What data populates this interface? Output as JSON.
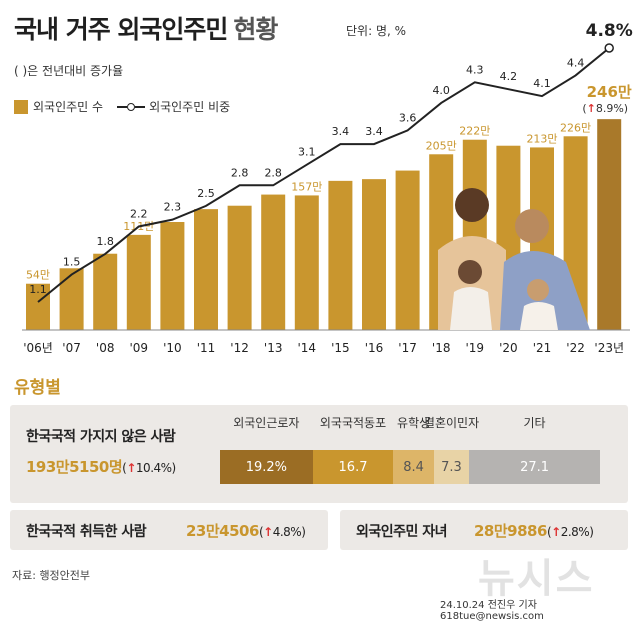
{
  "header": {
    "title": "국내 거주 외국인주민",
    "subtitle": "현황",
    "unit": "단위: 명, %",
    "note": "( )은 전년대비 증가율"
  },
  "legend": {
    "bars": "외국인주민 수",
    "line": "외국인주민 비중"
  },
  "colors": {
    "bar": "#c9962e",
    "bar_last": "#a9792a",
    "line": "#222222",
    "bar_label": "#c9962e",
    "up_arrow": "#dd3333"
  },
  "chart_data": {
    "type": "bar",
    "categories": [
      "'06년",
      "'07",
      "'08",
      "'09",
      "'10",
      "'11",
      "'12",
      "'13",
      "'14",
      "'15",
      "'16",
      "'17",
      "'18",
      "'19",
      "'20",
      "'21",
      "'22",
      "'23년"
    ],
    "series": [
      {
        "name": "외국인주민 수",
        "type": "bar",
        "values": [
          54,
          72,
          89,
          111,
          126,
          141,
          145,
          158,
          157,
          174,
          176,
          186,
          205,
          222,
          215,
          213,
          226,
          246
        ],
        "labels": [
          "54만",
          "",
          "",
          "111만",
          "",
          "",
          "",
          "",
          "157만",
          "",
          "",
          "",
          "205만",
          "222만",
          "",
          "213만",
          "226만",
          "246만"
        ]
      },
      {
        "name": "외국인주민 비중",
        "type": "line",
        "values": [
          1.1,
          1.5,
          1.8,
          2.2,
          2.3,
          2.5,
          2.8,
          2.8,
          3.1,
          3.4,
          3.4,
          3.6,
          4.0,
          4.3,
          4.2,
          4.1,
          4.4,
          4.8
        ],
        "labels": [
          "1.1",
          "1.5",
          "1.8",
          "2.2",
          "2.3",
          "2.5",
          "2.8",
          "2.8",
          "3.1",
          "3.4",
          "3.4",
          "3.6",
          "4.0",
          "4.3",
          "4.2",
          "4.1",
          "4.4",
          "4.8%"
        ]
      }
    ],
    "last_change": "8.9%",
    "ylim_bar": [
      0,
      280
    ],
    "ylim_line": [
      0,
      5
    ]
  },
  "types": {
    "section_title": "유형별",
    "non_citizen": {
      "label": "한국국적 가지지 않은 사람",
      "value": "193만5150명",
      "change": "10.4%",
      "segments": [
        {
          "name": "외국인근로자",
          "value": 19.2,
          "display": "19.2%",
          "color": "#9b6d24"
        },
        {
          "name": "외국국적동포",
          "value": 16.7,
          "display": "16.7",
          "color": "#c9962e"
        },
        {
          "name": "유학생",
          "value": 8.4,
          "display": "8.4",
          "color": "#ddb568"
        },
        {
          "name": "결혼이민자",
          "value": 7.3,
          "display": "7.3",
          "color": "#e8d3a6"
        },
        {
          "name": "기타",
          "value": 27.1,
          "display": "27.1",
          "color": "#b5b3b1"
        }
      ]
    },
    "naturalized": {
      "label": "한국국적 취득한 사람",
      "value": "23만4506",
      "change": "4.8%"
    },
    "children": {
      "label": "외국인주민 자녀",
      "value": "28만9886",
      "change": "2.8%"
    }
  },
  "footer": {
    "source": "자료: 행정안전부",
    "credit": "24.10.24 전진우 기자 618tue@newsis.com",
    "watermark": "뉴시스"
  }
}
